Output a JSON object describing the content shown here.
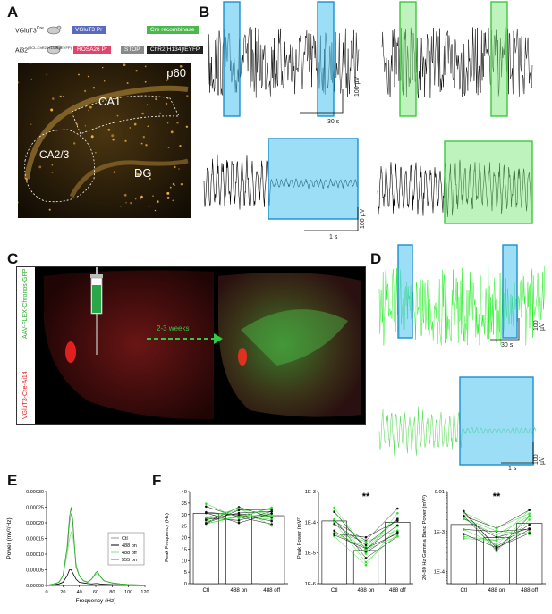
{
  "panels": {
    "a": "A",
    "b": "B",
    "c": "C",
    "d": "D",
    "e": "E",
    "f": "F"
  },
  "colors": {
    "blue": "#4dc3f0",
    "blue_edge": "#1a8fd0",
    "green_light": "#7ee87e",
    "green_edge": "#3cc83c",
    "gray": "#999999",
    "black": "#000000",
    "green": "#22cc22"
  },
  "panel_a": {
    "mouse1_label": "VGluT3",
    "mouse1_sup": "Cre",
    "mouse2_label": "Ai32",
    "mouse2_sup": "(RCL-ChR2(H134R)/EYFP)",
    "promoter1": "VGluT3 Pr",
    "gene1": "Cre recombinase",
    "promoter2": "ROSA26 Pr",
    "stop": "STOP",
    "gene2": "ChR2(H134)/EYFP",
    "age": "p60",
    "region_ca1": "CA1",
    "region_ca23": "CA2/3",
    "region_dg": "DG"
  },
  "panel_b": {
    "scale_time_top": "30 s",
    "scale_amp_top": "100 µV",
    "scale_time_bottom": "1 s",
    "scale_amp_bottom": "100 µV"
  },
  "panel_c": {
    "side_label_red": "VGluT3-Cre-Ai14",
    "side_label_green": "AAV-FLEX-Chronos-GFP",
    "arrow_label": "2-3 weeks"
  },
  "panel_d": {
    "scale_time_top": "30 s",
    "scale_amp_top": "100 µV",
    "scale_time_bottom": "1 s",
    "scale_amp_bottom": "100 µV"
  },
  "panel_e": {
    "ylabel": "Power (mV²/Hz)",
    "xlabel": "Frequency (Hz)",
    "yticks": [
      "0.00030",
      "0.00025",
      "0.00020",
      "0.00015",
      "0.00010",
      "0.00005",
      "0.00000"
    ],
    "xticks": [
      "0",
      "20",
      "40",
      "60",
      "80",
      "100",
      "120"
    ],
    "legend": [
      "Ctl",
      "488 on",
      "488 off",
      "555 on"
    ]
  },
  "chart_data": [
    {
      "type": "line",
      "xlabel": "Frequency (Hz)",
      "ylabel": "Power (mV²/Hz)",
      "xlim": [
        0,
        120
      ],
      "ylim": [
        0,
        0.0003
      ],
      "legend": "top-right",
      "x": [
        0,
        5,
        10,
        15,
        20,
        25,
        28,
        30,
        32,
        34,
        36,
        40,
        45,
        50,
        55,
        60,
        62,
        65,
        70,
        80,
        90,
        100,
        110,
        120
      ],
      "series": [
        {
          "name": "Ctl",
          "color": "#999999",
          "values": [
            0,
            3e-06,
            5e-06,
            1e-05,
            3e-05,
            0.0001,
            0.0002,
            0.00023,
            0.0002,
            0.00012,
            6e-05,
            3e-05,
            1.5e-05,
            1e-05,
            2e-05,
            4e-05,
            4.5e-05,
            3e-05,
            1.5e-05,
            8e-06,
            5e-06,
            3e-06,
            2e-06,
            1e-06
          ]
        },
        {
          "name": "488 on",
          "color": "#000000",
          "values": [
            0,
            2e-06,
            3e-06,
            5e-06,
            1e-05,
            3e-05,
            5e-05,
            5e-05,
            4e-05,
            3e-05,
            2e-05,
            1e-05,
            8e-06,
            6e-06,
            5e-06,
            6e-06,
            6e-06,
            5e-06,
            4e-06,
            3e-06,
            2e-06,
            1e-06,
            1e-06,
            0
          ]
        },
        {
          "name": "488 off",
          "color": "#7ee87e",
          "values": [
            0,
            3e-06,
            5e-06,
            1e-05,
            3e-05,
            0.0001,
            0.00015,
            0.00017,
            0.00016,
            0.00012,
            7e-05,
            3e-05,
            1.5e-05,
            1.2e-05,
            2e-05,
            3.5e-05,
            4e-05,
            3e-05,
            1.5e-05,
            8e-06,
            5e-06,
            3e-06,
            2e-06,
            1e-06
          ]
        },
        {
          "name": "555 on",
          "color": "#22aa22",
          "values": [
            0,
            3e-06,
            6e-06,
            1e-05,
            3e-05,
            0.00012,
            0.00022,
            0.00025,
            0.00021,
            0.00013,
            6e-05,
            3e-05,
            1.5e-05,
            1e-05,
            2e-05,
            4e-05,
            4.5e-05,
            3e-05,
            1.5e-05,
            8e-06,
            5e-06,
            3e-06,
            2e-06,
            1e-06
          ]
        }
      ]
    },
    {
      "type": "bar",
      "ylabel": "Peak Frequency (Hz)",
      "categories": [
        "Ctl",
        "488 on",
        "488 off"
      ],
      "values": [
        30.5,
        30,
        29.5
      ],
      "ylim": [
        0,
        40
      ],
      "yticks": [
        "0",
        "5",
        "10",
        "15",
        "20",
        "25",
        "30",
        "35",
        "40"
      ],
      "significance": ""
    },
    {
      "type": "bar",
      "ylabel": "Peak Power (mV²)",
      "categories": [
        "Ctl",
        "488 on",
        "488 off"
      ],
      "values": [
        0.00011,
        1.2e-05,
        0.0001
      ],
      "ylog": true,
      "ylim": [
        1e-06,
        0.001
      ],
      "yticks": [
        "1E-3",
        "1E-4",
        "1E-5",
        "1E-6"
      ],
      "significance": "**"
    },
    {
      "type": "bar",
      "ylabel": "20-80 Hz Gamma Band Power (mV²)",
      "categories": [
        "Ctl",
        "488 on",
        "488 off"
      ],
      "values": [
        0.0015,
        0.0007,
        0.0016
      ],
      "ylog": true,
      "ylim": [
        5e-05,
        0.01
      ],
      "yticks": [
        "0.01",
        "1E-3",
        "1E-4"
      ],
      "significance": "**"
    }
  ]
}
